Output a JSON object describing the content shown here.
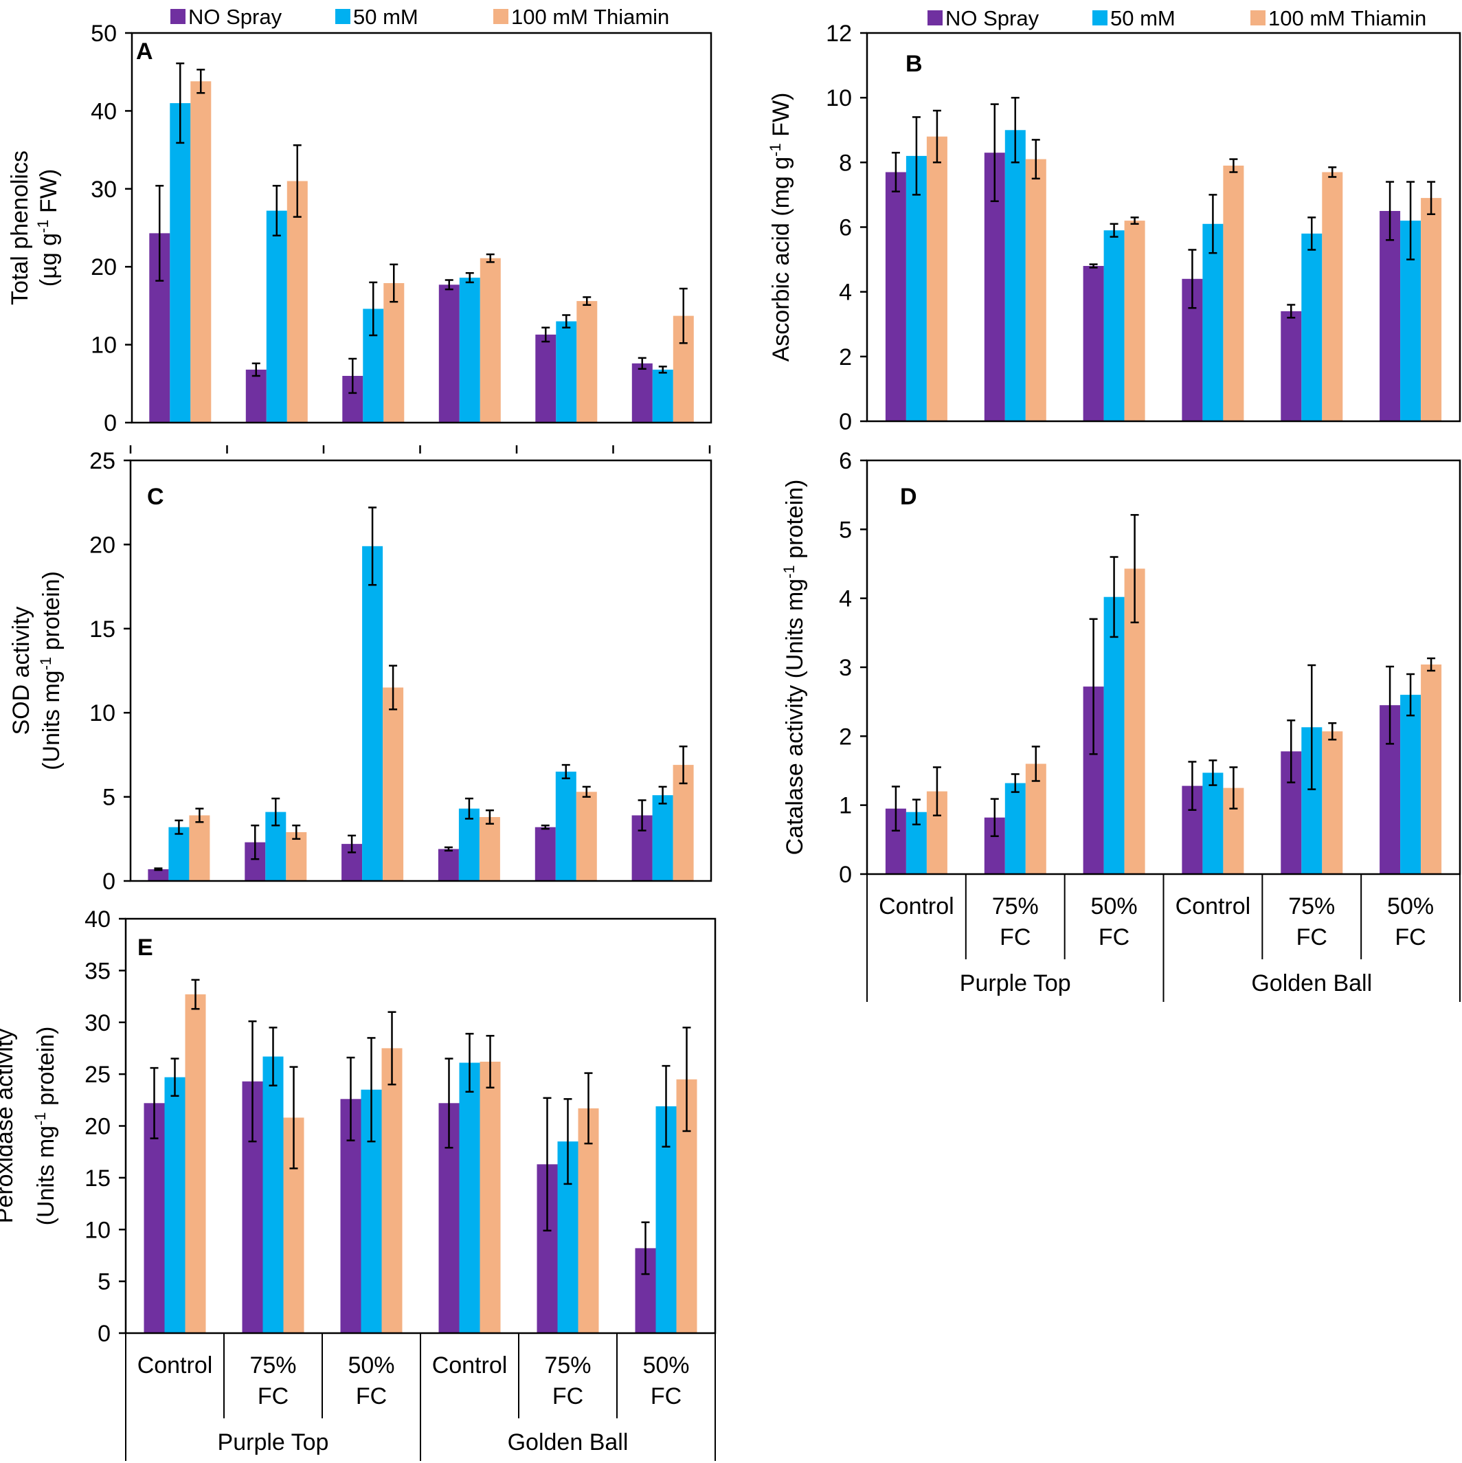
{
  "figure": {
    "legend_labels": [
      "NO Spray",
      "50 mM",
      "100 mM Thiamin"
    ],
    "colors": [
      "#7030A0",
      "#00B0F0",
      "#F4B183"
    ]
  },
  "chart_data": [
    {
      "panel": "A",
      "type": "bar",
      "ylabel_line1": "Total phenolics",
      "ylabel_line2": "(µg g",
      "ylabel_sup": "-1",
      "ylabel_tail": " FW)",
      "ylim": [
        0,
        50
      ],
      "yticks": [
        0,
        10,
        20,
        30,
        40,
        50
      ],
      "categories": [
        "Control",
        "75% FC",
        "50% FC",
        "Control",
        "75% FC",
        "50% FC"
      ],
      "groups": [
        "Purple Top",
        "Golden Ball"
      ],
      "legend_position": "top",
      "series": [
        {
          "name": "NO Spray",
          "values": [
            24.3,
            6.8,
            6.0,
            17.7,
            11.3,
            7.6
          ],
          "errors": [
            6.1,
            0.8,
            2.2,
            0.6,
            0.9,
            0.7
          ]
        },
        {
          "name": "50 mM",
          "values": [
            41.0,
            27.2,
            14.6,
            18.6,
            13.0,
            6.8
          ],
          "errors": [
            5.1,
            3.2,
            3.4,
            0.6,
            0.8,
            0.4
          ]
        },
        {
          "name": "100 mM Thiamin",
          "values": [
            43.8,
            31.0,
            17.9,
            21.1,
            15.6,
            13.7
          ],
          "errors": [
            1.5,
            4.6,
            2.4,
            0.5,
            0.5,
            3.5
          ]
        }
      ]
    },
    {
      "panel": "B",
      "type": "bar",
      "ylabel_line1": "",
      "ylabel_line2": "Ascorbic acid (mg g",
      "ylabel_sup": "-1",
      "ylabel_tail": " FW)",
      "ylim": [
        0,
        12
      ],
      "yticks": [
        0,
        2,
        4,
        6,
        8,
        10,
        12
      ],
      "categories": [
        "Control",
        "75% FC",
        "50% FC",
        "Control",
        "75% FC",
        "50% FC"
      ],
      "groups": [
        "Purple Top",
        "Golden Ball"
      ],
      "legend_position": "top",
      "series": [
        {
          "name": "NO Spray",
          "values": [
            7.7,
            8.3,
            4.8,
            4.4,
            3.4,
            6.5
          ],
          "errors": [
            0.6,
            1.5,
            0.05,
            0.9,
            0.2,
            0.9
          ]
        },
        {
          "name": "50 mM",
          "values": [
            8.2,
            9.0,
            5.9,
            6.1,
            5.8,
            6.2
          ],
          "errors": [
            1.2,
            1.0,
            0.2,
            0.9,
            0.5,
            1.2
          ]
        },
        {
          "name": "100 mM Thiamin",
          "values": [
            8.8,
            8.1,
            6.2,
            7.9,
            7.7,
            6.9
          ],
          "errors": [
            0.8,
            0.6,
            0.1,
            0.2,
            0.15,
            0.5
          ]
        }
      ]
    },
    {
      "panel": "C",
      "type": "bar",
      "ylabel_line1": "SOD activity",
      "ylabel_line2": "(Units mg",
      "ylabel_sup": "-1",
      "ylabel_tail": " protein)",
      "ylim": [
        0,
        25
      ],
      "yticks": [
        0,
        5,
        10,
        15,
        20,
        25
      ],
      "categories": [
        "Control",
        "75% FC",
        "50% FC",
        "Control",
        "75% FC",
        "50% FC"
      ],
      "groups": [
        "Purple Top",
        "Golden Ball"
      ],
      "series": [
        {
          "name": "NO Spray",
          "values": [
            0.7,
            2.3,
            2.2,
            1.9,
            3.2,
            3.9
          ],
          "errors": [
            0.05,
            1.0,
            0.5,
            0.1,
            0.1,
            0.9
          ]
        },
        {
          "name": "50 mM",
          "values": [
            3.2,
            4.1,
            19.9,
            4.3,
            6.5,
            5.1
          ],
          "errors": [
            0.4,
            0.8,
            2.3,
            0.6,
            0.4,
            0.5
          ]
        },
        {
          "name": "100 mM Thiamin",
          "values": [
            3.9,
            2.9,
            11.5,
            3.8,
            5.3,
            6.9
          ],
          "errors": [
            0.4,
            0.4,
            1.3,
            0.4,
            0.3,
            1.1
          ]
        }
      ]
    },
    {
      "panel": "D",
      "type": "bar",
      "ylabel_line1": "",
      "ylabel_line2": "Catalase activity (Units mg",
      "ylabel_sup": "-1",
      "ylabel_tail": " protein)",
      "ylim": [
        0,
        6
      ],
      "yticks": [
        0,
        1,
        2,
        3,
        4,
        5,
        6
      ],
      "categories": [
        "Control",
        "75% FC",
        "50% FC",
        "Control",
        "75% FC",
        "50% FC"
      ],
      "groups": [
        "Purple Top",
        "Golden Ball"
      ],
      "series": [
        {
          "name": "NO Spray",
          "values": [
            0.95,
            0.82,
            2.72,
            1.28,
            1.78,
            2.45
          ],
          "errors": [
            0.32,
            0.27,
            0.98,
            0.35,
            0.45,
            0.56
          ]
        },
        {
          "name": "50 mM",
          "values": [
            0.9,
            1.32,
            4.02,
            1.47,
            2.13,
            2.6
          ],
          "errors": [
            0.18,
            0.13,
            0.58,
            0.18,
            0.9,
            0.3
          ]
        },
        {
          "name": "100 mM Thiamin",
          "values": [
            1.2,
            1.6,
            4.43,
            1.25,
            2.07,
            3.04
          ],
          "errors": [
            0.35,
            0.25,
            0.78,
            0.3,
            0.12,
            0.09
          ]
        }
      ]
    },
    {
      "panel": "E",
      "type": "bar",
      "ylabel_line1": "Peroxidase activity",
      "ylabel_line2": "(Units mg",
      "ylabel_sup": "-1",
      "ylabel_tail": " protein)",
      "ylim": [
        0,
        40
      ],
      "yticks": [
        0,
        5,
        10,
        15,
        20,
        25,
        30,
        35,
        40
      ],
      "categories": [
        "Control",
        "75% FC",
        "50% FC",
        "Control",
        "75% FC",
        "50% FC"
      ],
      "groups": [
        "Purple Top",
        "Golden Ball"
      ],
      "series": [
        {
          "name": "NO Spray",
          "values": [
            22.2,
            24.3,
            22.6,
            22.2,
            16.3,
            8.2
          ],
          "errors": [
            3.4,
            5.8,
            4.0,
            4.3,
            6.4,
            2.5
          ]
        },
        {
          "name": "50 mM",
          "values": [
            24.7,
            26.7,
            23.5,
            26.1,
            18.5,
            21.9
          ],
          "errors": [
            1.8,
            2.8,
            5.0,
            2.8,
            4.1,
            3.9
          ]
        },
        {
          "name": "100 mM Thiamin",
          "values": [
            32.7,
            20.8,
            27.5,
            26.2,
            21.7,
            24.5
          ],
          "errors": [
            1.4,
            4.9,
            3.5,
            2.5,
            3.4,
            5.0
          ]
        }
      ]
    }
  ]
}
